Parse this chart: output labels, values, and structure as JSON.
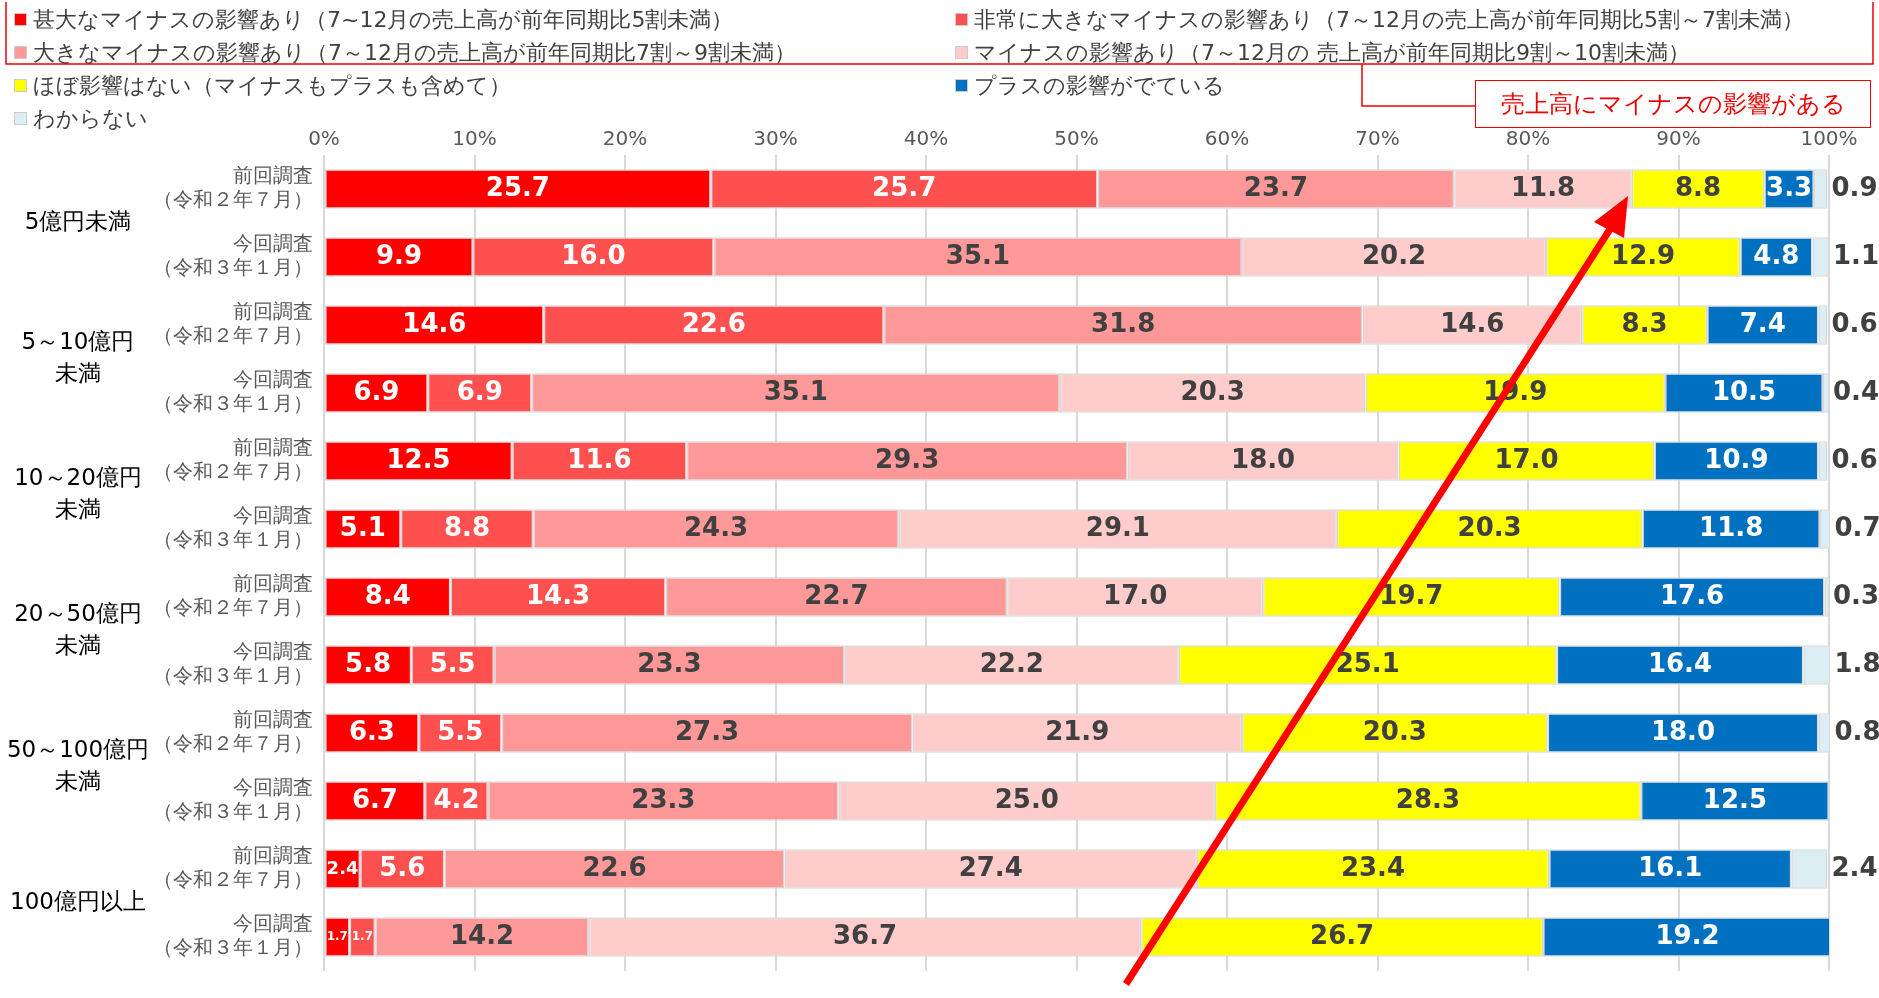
{
  "chart_data": {
    "type": "bar",
    "orientation": "horizontal",
    "stacked": true,
    "categories": [
      "前回調査（令和２年７月）",
      "今回調査（令和３年１月）",
      "前回調査（令和２年７月）",
      "今回調査（令和３年１月）",
      "前回調査（令和２年７月）",
      "今回調査（令和３年１月）",
      "前回調査（令和２年７月）",
      "今回調査（令和３年１月）",
      "前回調査（令和２年７月）",
      "今回調査（令和３年１月）",
      "前回調査（令和２年７月）",
      "今回調査（令和３年１月）"
    ],
    "series": [
      {
        "name": "甚大なマイナスの影響あり（7~12月の売上高が前年同期比5割未満）",
        "color": "#ff0000",
        "values": [
          25.7,
          9.9,
          14.6,
          6.9,
          12.5,
          5.1,
          8.4,
          5.8,
          6.3,
          6.7,
          2.4,
          1.7
        ],
        "value_labels": [
          "25.7",
          "9.9",
          "14.6",
          "6.9",
          "12.5",
          "5.1",
          "8.4",
          "5.8",
          "6.3",
          "6.7",
          "2.4",
          "1.7"
        ]
      },
      {
        "name": "非常に大きなマイナスの影響あり（7～12月の売上高が前年同期比5割～7割未満）",
        "color": "#ff5050",
        "values": [
          25.7,
          16.0,
          22.6,
          6.9,
          11.6,
          8.8,
          14.3,
          5.5,
          5.5,
          4.2,
          5.6,
          1.7
        ],
        "value_labels": [
          "25.7",
          "16.0",
          "22.6",
          "6.9",
          "11.6",
          "8.8",
          "14.3",
          "5.5",
          "5.5",
          "4.2",
          "5.6",
          "1.7"
        ]
      },
      {
        "name": "大きなマイナスの影響あり（7～12月の売上高が前年同期比7割～9割未満）",
        "color": "#ff9999",
        "values": [
          23.7,
          35.1,
          31.8,
          35.1,
          29.3,
          24.3,
          22.7,
          23.3,
          27.3,
          23.3,
          22.6,
          14.2
        ],
        "value_labels": [
          "23.7",
          "35.1",
          "31.8",
          "35.1",
          "29.3",
          "24.3",
          "22.7",
          "23.3",
          "27.3",
          "23.3",
          "22.6",
          "14.2"
        ]
      },
      {
        "name": "マイナスの影響あり（7～12月の 売上高が前年同期比9割～10割未満）",
        "color": "#ffcccc",
        "values": [
          11.8,
          20.2,
          14.6,
          20.3,
          18.0,
          29.1,
          17.0,
          22.2,
          21.9,
          25.0,
          27.4,
          36.7
        ],
        "value_labels": [
          "11.8",
          "20.2",
          "14.6",
          "20.3",
          "18.0",
          "29.1",
          "17.0",
          "22.2",
          "21.9",
          "25.0",
          "27.4",
          "36.7"
        ]
      },
      {
        "name": "ほぼ影響はない（マイナスもプラスも含めて）",
        "color": "#ffff00",
        "values": [
          8.8,
          12.9,
          8.3,
          19.9,
          17.0,
          20.3,
          19.7,
          25.1,
          20.3,
          28.3,
          23.4,
          26.7
        ],
        "value_labels": [
          "8.8",
          "12.9",
          "8.3",
          "19.9",
          "17.0",
          "20.3",
          "19.7",
          "25.1",
          "20.3",
          "28.3",
          "23.4",
          "26.7"
        ]
      },
      {
        "name": "プラスの影響がでている",
        "color": "#0070c0",
        "values": [
          3.3,
          4.8,
          7.4,
          10.5,
          10.9,
          11.8,
          17.6,
          16.4,
          18.0,
          12.5,
          16.1,
          19.2
        ],
        "value_labels": [
          "3.3",
          "4.8",
          "7.4",
          "10.5",
          "10.9",
          "11.8",
          "17.6",
          "16.4",
          "18.0",
          "12.5",
          "16.1",
          "19.2"
        ]
      },
      {
        "name": "わからない",
        "color": "#dbeef4",
        "values": [
          0.9,
          1.1,
          0.6,
          0.4,
          0.6,
          0.7,
          0.3,
          1.8,
          0.8,
          null,
          2.4,
          null
        ],
        "value_labels": [
          "0.9",
          "1.1",
          "0.6",
          "0.4",
          "0.6",
          "0.7",
          "0.3",
          "1.8",
          "0.8",
          null,
          "2.4",
          null
        ]
      }
    ],
    "xlim": [
      0,
      100
    ],
    "xticks": [
      {
        "value": 0,
        "label": "0%"
      },
      {
        "value": 10,
        "label": "10%"
      },
      {
        "value": 20,
        "label": "20%"
      },
      {
        "value": 30,
        "label": "30%"
      },
      {
        "value": 40,
        "label": "40%"
      },
      {
        "value": 50,
        "label": "50%"
      },
      {
        "value": 60,
        "label": "60%"
      },
      {
        "value": 70,
        "label": "70%"
      },
      {
        "value": 80,
        "label": "80%"
      },
      {
        "value": 90,
        "label": "90%"
      },
      {
        "value": 100,
        "label": "100%"
      }
    ],
    "grid": "x",
    "legend": "top",
    "annotations": [
      "5億円未満",
      "5～10億円未満",
      "10～20億円未満",
      "20～50億円未満",
      "50～100億円未満",
      "100億円以上",
      "売上高にマイナスの影響がある"
    ]
  }
}
